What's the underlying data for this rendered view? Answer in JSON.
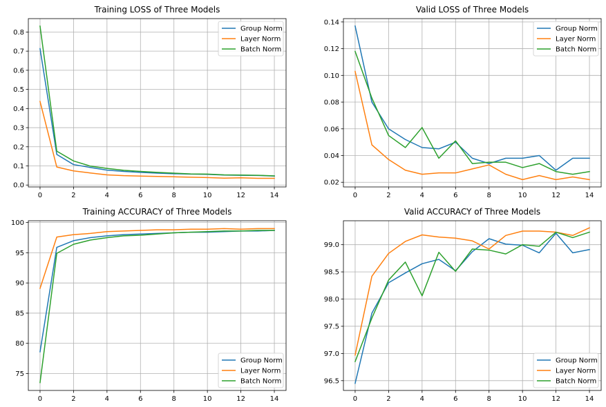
{
  "chart_data": [
    {
      "type": "line",
      "title": "Training LOSS of Three Models",
      "xlabel": "",
      "ylabel": "",
      "xlim": [
        -0.7,
        14.7
      ],
      "ylim": [
        -0.01,
        0.87
      ],
      "xticks": [
        0,
        2,
        4,
        6,
        8,
        10,
        12,
        14
      ],
      "xtick_labels": [
        "0",
        "2",
        "4",
        "6",
        "8",
        "10",
        "12",
        "14"
      ],
      "yticks": [
        0.0,
        0.1,
        0.2,
        0.3,
        0.4,
        0.5,
        0.6,
        0.7,
        0.8
      ],
      "ytick_labels": [
        "0.0",
        "0.1",
        "0.2",
        "0.3",
        "0.4",
        "0.5",
        "0.6",
        "0.7",
        "0.8"
      ],
      "grid": true,
      "legend_position": "top-right",
      "x": [
        0,
        1,
        2,
        3,
        4,
        5,
        6,
        7,
        8,
        9,
        10,
        11,
        12,
        13,
        14
      ],
      "series": [
        {
          "name": "Group Norm",
          "color": "#1f77b4",
          "values": [
            0.713,
            0.16,
            0.107,
            0.092,
            0.078,
            0.071,
            0.066,
            0.062,
            0.059,
            0.057,
            0.056,
            0.052,
            0.051,
            0.05,
            0.047
          ]
        },
        {
          "name": "Layer Norm",
          "color": "#ff7f0e",
          "values": [
            0.437,
            0.094,
            0.074,
            0.063,
            0.053,
            0.049,
            0.047,
            0.045,
            0.043,
            0.041,
            0.039,
            0.036,
            0.038,
            0.035,
            0.035
          ]
        },
        {
          "name": "Batch Norm",
          "color": "#2ca02c",
          "values": [
            0.831,
            0.177,
            0.126,
            0.099,
            0.087,
            0.077,
            0.071,
            0.066,
            0.062,
            0.058,
            0.057,
            0.053,
            0.052,
            0.051,
            0.048
          ]
        }
      ]
    },
    {
      "type": "line",
      "title": "Valid LOSS of Three Models",
      "xlabel": "",
      "ylabel": "",
      "xlim": [
        -0.7,
        14.7
      ],
      "ylim": [
        0.0165,
        0.1425
      ],
      "xticks": [
        0,
        2,
        4,
        6,
        8,
        10,
        12,
        14
      ],
      "xtick_labels": [
        "0",
        "2",
        "4",
        "6",
        "8",
        "10",
        "12",
        "14"
      ],
      "yticks": [
        0.02,
        0.04,
        0.06,
        0.08,
        0.1,
        0.12,
        0.14
      ],
      "ytick_labels": [
        "0.02",
        "0.04",
        "0.06",
        "0.08",
        "0.10",
        "0.12",
        "0.14"
      ],
      "grid": true,
      "legend_position": "top-right",
      "x": [
        0,
        1,
        2,
        3,
        4,
        5,
        6,
        7,
        8,
        9,
        10,
        11,
        12,
        13,
        14
      ],
      "series": [
        {
          "name": "Group Norm",
          "color": "#1f77b4",
          "values": [
            0.137,
            0.08,
            0.06,
            0.052,
            0.046,
            0.045,
            0.05,
            0.038,
            0.034,
            0.038,
            0.038,
            0.04,
            0.029,
            0.038,
            0.038
          ]
        },
        {
          "name": "Layer Norm",
          "color": "#ff7f0e",
          "values": [
            0.103,
            0.048,
            0.037,
            0.029,
            0.026,
            0.027,
            0.027,
            0.03,
            0.033,
            0.026,
            0.022,
            0.025,
            0.022,
            0.024,
            0.022
          ]
        },
        {
          "name": "Batch Norm",
          "color": "#2ca02c",
          "values": [
            0.118,
            0.083,
            0.055,
            0.046,
            0.061,
            0.038,
            0.051,
            0.034,
            0.035,
            0.035,
            0.031,
            0.034,
            0.028,
            0.026,
            0.028
          ]
        }
      ]
    },
    {
      "type": "line",
      "title": "Training ACCURACY of Three Models",
      "xlabel": "",
      "ylabel": "",
      "xlim": [
        -0.7,
        14.7
      ],
      "ylim": [
        72.2,
        100.3
      ],
      "xticks": [
        0,
        2,
        4,
        6,
        8,
        10,
        12,
        14
      ],
      "xtick_labels": [
        "0",
        "2",
        "4",
        "6",
        "8",
        "10",
        "12",
        "14"
      ],
      "yticks": [
        75,
        80,
        85,
        90,
        95,
        100
      ],
      "ytick_labels": [
        "75",
        "80",
        "85",
        "90",
        "95",
        "100"
      ],
      "grid": true,
      "legend_position": "bottom-right",
      "x": [
        0,
        1,
        2,
        3,
        4,
        5,
        6,
        7,
        8,
        9,
        10,
        11,
        12,
        13,
        14
      ],
      "series": [
        {
          "name": "Group Norm",
          "color": "#1f77b4",
          "values": [
            78.6,
            95.9,
            97.0,
            97.5,
            97.8,
            98.0,
            98.1,
            98.2,
            98.3,
            98.4,
            98.4,
            98.5,
            98.6,
            98.6,
            98.7
          ]
        },
        {
          "name": "Layer Norm",
          "color": "#ff7f0e",
          "values": [
            89.1,
            97.6,
            98.0,
            98.2,
            98.5,
            98.6,
            98.7,
            98.8,
            98.8,
            98.9,
            98.9,
            99.0,
            98.9,
            99.0,
            99.0
          ]
        },
        {
          "name": "Batch Norm",
          "color": "#2ca02c",
          "values": [
            73.5,
            94.9,
            96.4,
            97.1,
            97.5,
            97.8,
            97.9,
            98.1,
            98.3,
            98.4,
            98.5,
            98.6,
            98.6,
            98.7,
            98.7
          ]
        }
      ]
    },
    {
      "type": "line",
      "title": "Valid ACCURACY of Three Models",
      "xlabel": "",
      "ylabel": "",
      "xlim": [
        -0.7,
        14.7
      ],
      "ylim": [
        96.32,
        99.44
      ],
      "xticks": [
        0,
        2,
        4,
        6,
        8,
        10,
        12,
        14
      ],
      "xtick_labels": [
        "0",
        "2",
        "4",
        "6",
        "8",
        "10",
        "12",
        "14"
      ],
      "yticks": [
        96.5,
        97.0,
        97.5,
        98.0,
        98.5,
        99.0
      ],
      "ytick_labels": [
        "96.5",
        "97.0",
        "97.5",
        "98.0",
        "98.5",
        "99.0"
      ],
      "grid": true,
      "legend_position": "bottom-right",
      "x": [
        0,
        1,
        2,
        3,
        4,
        5,
        6,
        7,
        8,
        9,
        10,
        11,
        12,
        13,
        14
      ],
      "series": [
        {
          "name": "Group Norm",
          "color": "#1f77b4",
          "values": [
            96.45,
            97.74,
            98.3,
            98.48,
            98.65,
            98.73,
            98.52,
            98.87,
            99.11,
            99.01,
            98.99,
            98.85,
            99.21,
            98.85,
            98.91
          ]
        },
        {
          "name": "Layer Norm",
          "color": "#ff7f0e",
          "values": [
            96.97,
            98.42,
            98.84,
            99.06,
            99.18,
            99.14,
            99.12,
            99.07,
            98.92,
            99.17,
            99.25,
            99.25,
            99.23,
            99.17,
            99.31
          ]
        },
        {
          "name": "Batch Norm",
          "color": "#2ca02c",
          "values": [
            96.85,
            97.65,
            98.35,
            98.68,
            98.06,
            98.86,
            98.51,
            98.92,
            98.9,
            98.83,
            99.0,
            98.97,
            99.23,
            99.13,
            99.23
          ]
        }
      ]
    }
  ]
}
